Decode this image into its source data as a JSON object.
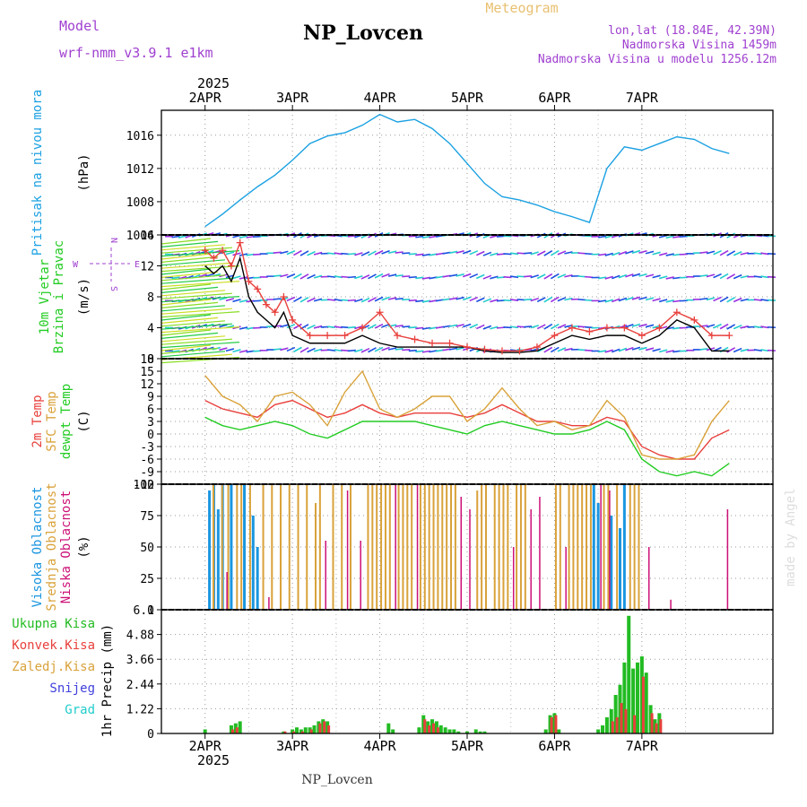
{
  "header": {
    "title": "NP_Lovcen",
    "meteogram": "Meteogram",
    "model_label": "Model",
    "model_name": "wrf-nmm_v3.9.1  e1km",
    "coords": "lon,lat (18.84E, 42.39N)",
    "elevation": "Nadmorska Visina 1459m",
    "model_elevation": "Nadmorska Visina u modelu 1256.12m",
    "footer": "NP_Lovcen",
    "credit": "made by Angel"
  },
  "time_axis": {
    "year": "2025",
    "days": [
      "2APR",
      "3APR",
      "4APR",
      "5APR",
      "6APR",
      "7APR"
    ]
  },
  "colors": {
    "pressure": "#1ba1e2",
    "t2m": "#e8403c",
    "tsfc": "#d9a23a",
    "dewpt": "#22cc22",
    "wind_speed": "#000000",
    "gust": "#e8403c",
    "high_cloud": "#1a96e0",
    "mid_cloud": "#d9a23a",
    "low_cloud": "#cc1177",
    "rain": "#22bb22",
    "conv": "#e8403c",
    "snow": "#4040dd",
    "hail": "#22cccc",
    "ylabel_blue": "#1ba1e2",
    "ylabel_green": "#22cc22",
    "ylabel_purple": "#a040d0"
  },
  "chart_data": [
    {
      "type": "line",
      "name": "pressure",
      "ylabel_side": "Pritisak na nivou mora",
      "ylabel_unit": "(hPa)",
      "yticks": [
        1004,
        1008,
        1012,
        1016
      ],
      "ylim": [
        1004,
        1019
      ],
      "grid": true,
      "series": [
        {
          "name": "",
          "x": [
            0,
            0.2,
            0.4,
            0.6,
            0.8,
            1.0,
            1.2,
            1.4,
            1.6,
            1.8,
            2.0,
            2.2,
            2.4,
            2.6,
            2.8,
            3.0,
            3.2,
            3.4,
            3.6,
            3.8,
            4.0,
            4.2,
            4.4,
            4.6,
            4.8,
            5.0,
            5.2,
            5.4,
            5.6,
            5.8,
            6.0
          ],
          "y": [
            1005.0,
            1006.5,
            1008.2,
            1009.8,
            1011.2,
            1013.0,
            1015.0,
            1015.9,
            1016.3,
            1017.2,
            1018.5,
            1017.6,
            1017.9,
            1016.8,
            1015.0,
            1012.6,
            1010.2,
            1008.6,
            1008.2,
            1007.6,
            1006.8,
            1006.2,
            1005.5,
            1012.0,
            1014.6,
            1014.2,
            1015.0,
            1015.8,
            1015.5,
            1014.4,
            1013.8
          ]
        }
      ]
    },
    {
      "type": "line",
      "name": "wind",
      "ylabel_side": [
        "10m Vjetar",
        "Brzina i Pravac"
      ],
      "ylabel_unit": "(m/s)",
      "compass": {
        "w": "W",
        "e": "E",
        "n": "N",
        "s": "S"
      },
      "yticks": [
        0,
        4,
        8,
        12,
        16
      ],
      "ylim": [
        0,
        16
      ],
      "grid": true,
      "series": [
        {
          "name": "",
          "x": [
            0,
            0.1,
            0.2,
            0.3,
            0.4,
            0.5,
            0.6,
            0.7,
            0.8,
            0.9,
            1.0,
            1.2,
            1.4,
            1.6,
            1.8,
            2.0,
            2.2,
            2.4,
            2.6,
            2.8,
            3.0,
            3.2,
            3.4,
            3.6,
            3.8,
            4.0,
            4.2,
            4.4,
            4.6,
            4.8,
            5.0,
            5.2,
            5.4,
            5.6,
            5.8,
            6.0
          ],
          "y": [
            12,
            11,
            12,
            10,
            13,
            8,
            6,
            5,
            4,
            6,
            3,
            2,
            2,
            2,
            3,
            2,
            1.5,
            1.5,
            1.5,
            1.5,
            1.5,
            1,
            0.8,
            0.8,
            1,
            2,
            3,
            2.5,
            3,
            3,
            2,
            3,
            5,
            4,
            1,
            1
          ]
        },
        {
          "name": "",
          "x": [
            0,
            0.1,
            0.2,
            0.3,
            0.4,
            0.5,
            0.6,
            0.7,
            0.8,
            0.9,
            1.0,
            1.2,
            1.4,
            1.6,
            1.8,
            2.0,
            2.2,
            2.4,
            2.6,
            2.8,
            3.0,
            3.2,
            3.4,
            3.6,
            3.8,
            4.0,
            4.2,
            4.4,
            4.6,
            4.8,
            5.0,
            5.2,
            5.4,
            5.6,
            5.8,
            6.0
          ],
          "y": [
            14,
            13,
            14,
            12,
            15,
            10,
            9,
            7,
            6,
            8,
            5,
            3,
            3,
            3,
            4,
            6,
            3,
            2.5,
            2,
            2,
            1.5,
            1.2,
            1,
            1,
            1.5,
            3,
            4,
            3.5,
            4,
            4,
            3,
            4,
            6,
            5,
            3,
            3
          ]
        }
      ],
      "barb_rows": [
        1,
        4,
        7.5,
        10.5,
        13.5,
        15.8
      ]
    },
    {
      "type": "line",
      "name": "temperature",
      "ylabel_side": [
        "2m Temp",
        "SFC Temp",
        "dewpt Temp"
      ],
      "ylabel_unit": "(C)",
      "yticks": [
        -12,
        -9,
        -6,
        -3,
        0,
        3,
        6,
        9,
        12,
        15,
        18
      ],
      "ylim": [
        -12,
        18
      ],
      "grid": true,
      "series": [
        {
          "name": "",
          "x": [
            0,
            0.2,
            0.4,
            0.6,
            0.8,
            1.0,
            1.2,
            1.4,
            1.6,
            1.8,
            2.0,
            2.2,
            2.4,
            2.6,
            2.8,
            3.0,
            3.2,
            3.4,
            3.6,
            3.8,
            4.0,
            4.2,
            4.4,
            4.6,
            4.8,
            5.0,
            5.2,
            5.4,
            5.6,
            5.8,
            6.0
          ],
          "y": [
            8,
            6,
            5,
            4,
            7,
            8,
            6,
            4,
            5,
            7,
            5,
            4,
            5,
            5,
            5,
            4,
            5,
            7,
            5,
            3,
            3,
            2,
            2,
            4,
            3,
            -3,
            -5,
            -6,
            -6,
            -1,
            1
          ]
        },
        {
          "name": "",
          "x": [
            0,
            0.2,
            0.4,
            0.6,
            0.8,
            1.0,
            1.2,
            1.4,
            1.6,
            1.8,
            2.0,
            2.2,
            2.4,
            2.6,
            2.8,
            3.0,
            3.2,
            3.4,
            3.6,
            3.8,
            4.0,
            4.2,
            4.4,
            4.6,
            4.8,
            5.0,
            5.2,
            5.4,
            5.6,
            5.8,
            6.0
          ],
          "y": [
            14,
            9,
            7,
            3,
            9,
            10,
            7,
            2,
            10,
            15,
            6,
            4,
            6,
            9,
            9,
            3,
            6,
            11,
            6,
            2,
            3,
            1,
            2,
            8,
            4,
            -5,
            -6,
            -6,
            -5,
            3,
            8
          ]
        },
        {
          "name": "",
          "x": [
            0,
            0.2,
            0.4,
            0.6,
            0.8,
            1.0,
            1.2,
            1.4,
            1.6,
            1.8,
            2.0,
            2.2,
            2.4,
            2.6,
            2.8,
            3.0,
            3.2,
            3.4,
            3.6,
            3.8,
            4.0,
            4.2,
            4.4,
            4.6,
            4.8,
            5.0,
            5.2,
            5.4,
            5.6,
            5.8,
            6.0
          ],
          "y": [
            4,
            2,
            1,
            2,
            3,
            2,
            0,
            -1,
            1,
            3,
            3,
            3,
            3,
            2,
            1,
            0,
            2,
            3,
            2,
            1,
            0,
            0,
            1,
            3,
            1,
            -6,
            -9,
            -10,
            -9,
            -10,
            -7
          ]
        }
      ]
    },
    {
      "type": "bar",
      "name": "clouds",
      "ylabel_side": [
        "Visoka Oblacnost",
        "Srednja Oblacnost",
        "Niska Oblacnost"
      ],
      "ylabel_unit": "(%)",
      "yticks": [
        0,
        25,
        50,
        75,
        100
      ],
      "ylim": [
        0,
        100
      ],
      "grid": true,
      "series": [
        {
          "name": "",
          "x": [
            0.05,
            0.1,
            0.15,
            0.2,
            0.3,
            0.45,
            0.55,
            0.6,
            4.45,
            4.5,
            4.65,
            4.75,
            4.8
          ],
          "values": [
            95,
            100,
            80,
            100,
            100,
            100,
            75,
            50,
            100,
            85,
            75,
            65,
            100
          ]
        },
        {
          "name": "",
          "x": [
            0.08,
            0.18,
            0.25,
            0.35,
            0.4,
            0.5,
            0.65,
            0.75,
            0.85,
            0.95,
            1.05,
            1.15,
            1.25,
            1.3,
            1.45,
            1.55,
            1.65,
            1.85,
            1.9,
            1.95,
            2.0,
            2.05,
            2.1,
            2.2,
            2.25,
            2.3,
            2.35,
            2.45,
            2.5,
            2.55,
            2.6,
            2.65,
            2.7,
            2.75,
            2.8,
            2.85,
            3.1,
            3.15,
            3.2,
            3.3,
            3.35,
            3.4,
            3.45,
            3.55,
            3.6,
            3.65,
            4.0,
            4.05,
            4.15,
            4.2,
            4.25,
            4.3,
            4.35,
            4.4,
            4.55,
            4.6,
            4.7,
            4.85,
            4.9,
            4.95
          ],
          "values": [
            100,
            100,
            100,
            100,
            100,
            100,
            100,
            100,
            100,
            100,
            100,
            100,
            85,
            100,
            100,
            100,
            100,
            100,
            100,
            100,
            100,
            100,
            100,
            100,
            100,
            100,
            100,
            100,
            100,
            100,
            100,
            100,
            100,
            100,
            100,
            100,
            95,
            100,
            100,
            100,
            100,
            100,
            100,
            100,
            100,
            100,
            100,
            100,
            100,
            100,
            100,
            100,
            100,
            100,
            100,
            100,
            100,
            100,
            100,
            100
          ]
        },
        {
          "name": "",
          "x": [
            0.22,
            0.7,
            1.35,
            1.6,
            1.75,
            2.15,
            2.4,
            2.9,
            3.0,
            3.5,
            3.7,
            3.8,
            4.1,
            4.5,
            4.6,
            5.05,
            5.3,
            5.95
          ],
          "values": [
            30,
            10,
            55,
            95,
            55,
            100,
            100,
            90,
            80,
            50,
            80,
            90,
            50,
            100,
            95,
            50,
            8,
            80
          ]
        }
      ]
    },
    {
      "type": "bar",
      "name": "precip",
      "ylabel_side": [
        "Ukupna  Kisa",
        "Konvek.Kisa",
        "Zaledj.Kisa",
        "Snijeg",
        "Grad"
      ],
      "ylabel_unit": "1hr Precip (mm)",
      "yticks": [
        0,
        1.22,
        2.44,
        3.66,
        4.88,
        6.1
      ],
      "ylim": [
        0,
        6.1
      ],
      "grid": true,
      "series": [
        {
          "name": "",
          "x": [
            0.0,
            0.3,
            0.35,
            0.4,
            0.9,
            1.0,
            1.05,
            1.1,
            1.15,
            1.2,
            1.25,
            1.3,
            1.35,
            1.4,
            2.1,
            2.15,
            2.45,
            2.5,
            2.55,
            2.6,
            2.65,
            2.7,
            2.75,
            2.8,
            2.85,
            2.9,
            3.0,
            3.1,
            3.15,
            3.2,
            3.9,
            3.95,
            4.0,
            4.05,
            4.5,
            4.55,
            4.6,
            4.65,
            4.7,
            4.75,
            4.8,
            4.85,
            4.9,
            4.95,
            5.0,
            5.05,
            5.1,
            5.15,
            5.2
          ],
          "values": [
            0.2,
            0.4,
            0.5,
            0.6,
            0.1,
            0.2,
            0.3,
            0.2,
            0.3,
            0.3,
            0.4,
            0.6,
            0.7,
            0.6,
            0.5,
            0.2,
            0.3,
            0.9,
            0.6,
            0.7,
            0.6,
            0.4,
            0.3,
            0.2,
            0.2,
            0.1,
            0.1,
            0.2,
            0.1,
            0.1,
            0.2,
            0.9,
            1.0,
            0.2,
            0.2,
            0.4,
            0.8,
            1.2,
            1.9,
            2.4,
            3.5,
            5.8,
            3.2,
            3.5,
            3.8,
            3.0,
            1.4,
            0.7,
            1.0
          ]
        },
        {
          "name": "",
          "x": [
            0.3,
            0.35,
            0.9,
            1.0,
            1.1,
            1.2,
            1.3,
            1.35,
            1.4,
            2.5,
            2.55,
            2.6,
            2.65,
            3.95,
            4.0,
            4.65,
            4.7,
            4.75,
            4.8,
            4.9,
            5.0,
            5.1,
            5.15,
            5.2
          ],
          "values": [
            0.2,
            0.3,
            0.1,
            0.1,
            0.1,
            0.2,
            0.5,
            0.6,
            0.4,
            0.7,
            0.4,
            0.5,
            0.3,
            0.8,
            0.9,
            0.6,
            0.8,
            1.5,
            1.2,
            0.9,
            2.8,
            1.0,
            0.5,
            0.7
          ]
        }
      ]
    }
  ]
}
